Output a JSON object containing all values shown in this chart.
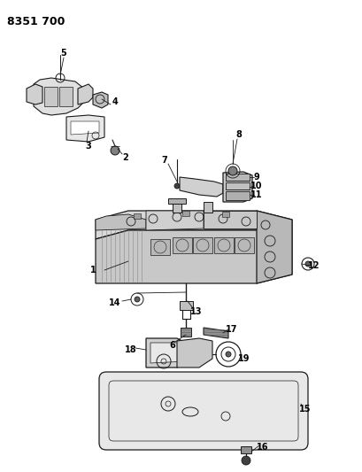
{
  "title": "8351 700",
  "bg": "#ffffff",
  "lc": "#1a1a1a",
  "tc": "#000000",
  "fig_width": 4.1,
  "fig_height": 5.33,
  "dpi": 100
}
